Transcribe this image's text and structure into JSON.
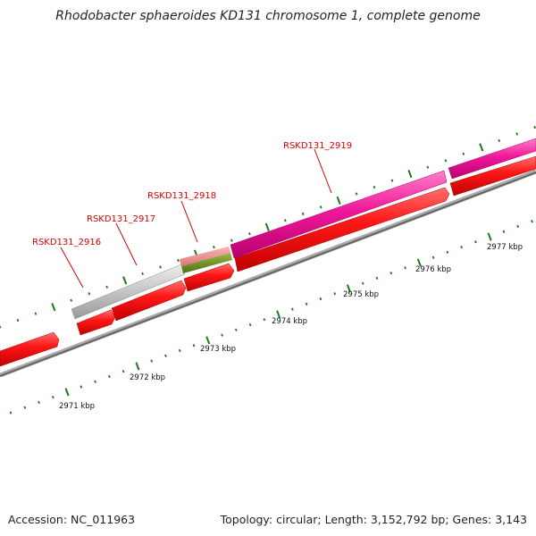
{
  "title": "Rhodobacter sphaeroides KD131 chromosome 1, complete genome",
  "footer": {
    "accession": "Accession: NC_011963",
    "summary": "Topology: circular; Length: 3,152,792 bp; Genes: 3,143"
  },
  "genes": [
    {
      "label": "RSKD131_2916"
    },
    {
      "label": "RSKD131_2917"
    },
    {
      "label": "RSKD131_2918"
    },
    {
      "label": "RSKD131_2919"
    }
  ],
  "scale_ticks": [
    {
      "label": "2971 kbp"
    },
    {
      "label": "2972 kbp"
    },
    {
      "label": "2973 kbp"
    },
    {
      "label": "2974 kbp"
    },
    {
      "label": "2975 kbp"
    },
    {
      "label": "2976 kbp"
    },
    {
      "label": "2977 kbp"
    }
  ],
  "colors": {
    "forward_cds": "#e8128f",
    "reverse_cds": "#ee1111",
    "hypothetical": "#bbbbbb",
    "backbone": "#777777",
    "tick_marks": "#1a7a1a",
    "gene_label": "#d40000"
  }
}
